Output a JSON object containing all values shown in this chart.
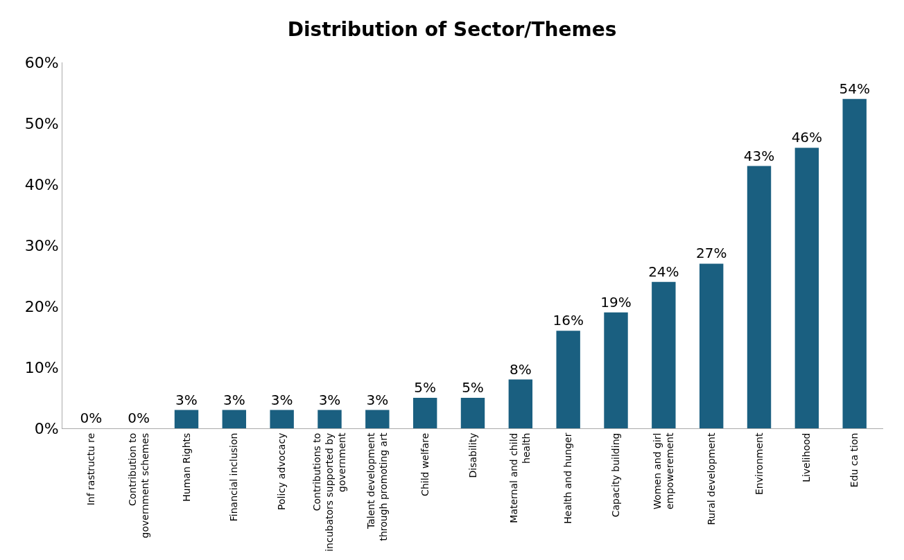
{
  "chart_data": {
    "type": "bar",
    "title": "Distribution of Sector/Themes",
    "categories": [
      "Inf rastructu re",
      "Contribution to government schemes",
      "Human Rights",
      "Financial inclusion",
      "Policy advocacy",
      "Contributions to incubators supported by government",
      "Talent development through promoting art",
      "Child welfare",
      "Disability",
      "Maternal and child health",
      "Health and hunger",
      "Capacity building",
      "Women and girl empowerement",
      "Rural development",
      "Environment",
      "Livelihood",
      "Edu ca tion"
    ],
    "values": [
      0,
      0,
      3,
      3,
      3,
      3,
      3,
      5,
      5,
      8,
      16,
      19,
      24,
      27,
      43,
      46,
      54
    ],
    "color": "#1a5f80",
    "value_labels": [
      "0%",
      "0%",
      "3%",
      "3%",
      "3%",
      "3%",
      "3%",
      "5%",
      "5%",
      "8%",
      "16%",
      "19%",
      "24%",
      "27%",
      "43%",
      "46%",
      "54%"
    ],
    "ylim": [
      0,
      60
    ],
    "yticks": [
      {
        "value": 0,
        "label": "0%"
      },
      {
        "value": 10,
        "label": "10%"
      },
      {
        "value": 20,
        "label": "20%"
      },
      {
        "value": 30,
        "label": "30%"
      },
      {
        "value": 40,
        "label": "40%"
      },
      {
        "value": 50,
        "label": "50%"
      },
      {
        "value": 60,
        "label": "60%"
      }
    ],
    "legend": false
  }
}
